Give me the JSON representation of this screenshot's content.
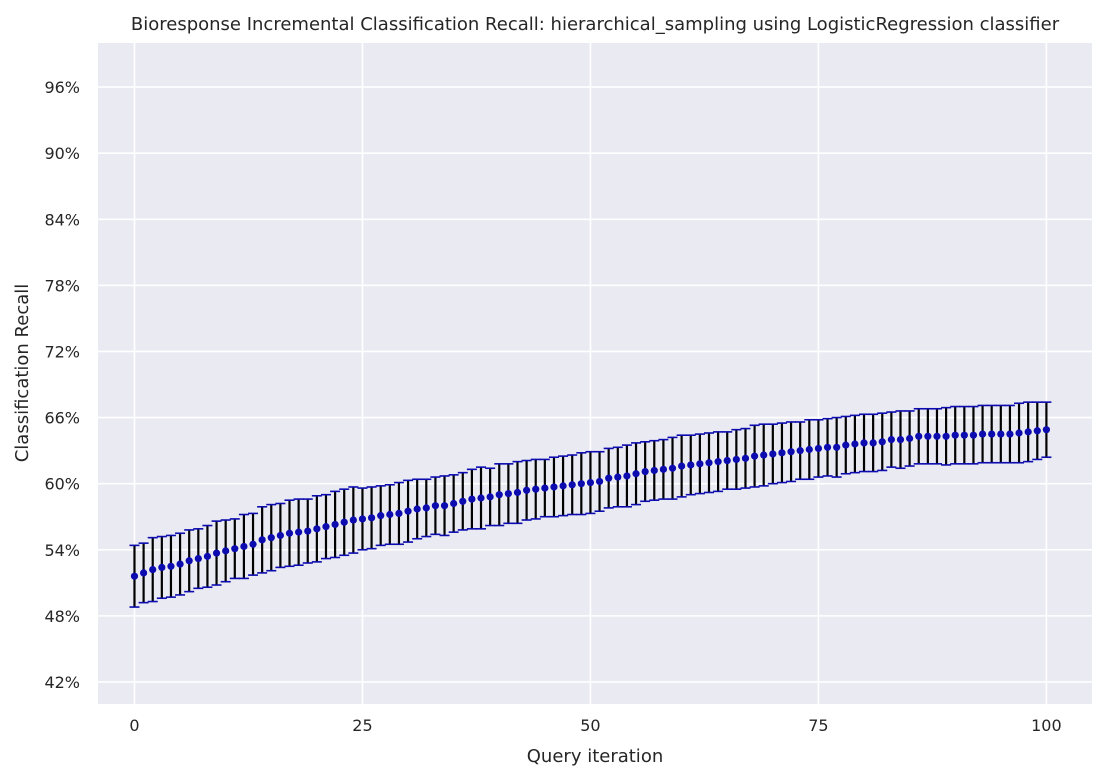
{
  "chart_data": {
    "type": "errorbar",
    "title": "Bioresponse Incremental Classification Recall: hierarchical_sampling using LogisticRegression classifier",
    "xlabel": "Query iteration",
    "ylabel": "Classification Recall",
    "xlim": [
      -4,
      105
    ],
    "ylim": [
      0.4,
      1.0
    ],
    "xticks": [
      0,
      25,
      50,
      75,
      100
    ],
    "xtick_labels": [
      "0",
      "25",
      "50",
      "75",
      "100"
    ],
    "yticks": [
      0.42,
      0.48,
      0.54,
      0.6,
      0.66,
      0.72,
      0.78,
      0.84,
      0.9,
      0.96
    ],
    "ytick_labels": [
      "42%",
      "48%",
      "54%",
      "60%",
      "66%",
      "72%",
      "78%",
      "84%",
      "90%",
      "96%"
    ],
    "grid": true,
    "colors": {
      "background": "#eaeaf2",
      "grid": "#ffffff",
      "marker": "#0b0bb0",
      "errorbar": "#000000",
      "cap": "#0b0bb0"
    },
    "series": [
      {
        "x": [
          0,
          1,
          2,
          3,
          4,
          5,
          6,
          7,
          8,
          9,
          10,
          11,
          12,
          13,
          14,
          15,
          16,
          17,
          18,
          19,
          20,
          21,
          22,
          23,
          24,
          25,
          26,
          27,
          28,
          29,
          30,
          31,
          32,
          33,
          34,
          35,
          36,
          37,
          38,
          39,
          40,
          41,
          42,
          43,
          44,
          45,
          46,
          47,
          48,
          49,
          50,
          51,
          52,
          53,
          54,
          55,
          56,
          57,
          58,
          59,
          60,
          61,
          62,
          63,
          64,
          65,
          66,
          67,
          68,
          69,
          70,
          71,
          72,
          73,
          74,
          75,
          76,
          77,
          78,
          79,
          80,
          81,
          82,
          83,
          84,
          85,
          86,
          87,
          88,
          89,
          90,
          91,
          92,
          93,
          94,
          95,
          96,
          97,
          98,
          99,
          100
        ],
        "y": [
          0.516,
          0.519,
          0.522,
          0.524,
          0.525,
          0.527,
          0.53,
          0.532,
          0.534,
          0.537,
          0.539,
          0.541,
          0.543,
          0.545,
          0.549,
          0.551,
          0.553,
          0.555,
          0.556,
          0.557,
          0.559,
          0.561,
          0.563,
          0.565,
          0.567,
          0.568,
          0.569,
          0.571,
          0.572,
          0.573,
          0.575,
          0.577,
          0.578,
          0.58,
          0.58,
          0.582,
          0.584,
          0.586,
          0.587,
          0.588,
          0.59,
          0.591,
          0.592,
          0.594,
          0.595,
          0.596,
          0.597,
          0.598,
          0.599,
          0.6,
          0.601,
          0.602,
          0.605,
          0.606,
          0.607,
          0.609,
          0.611,
          0.612,
          0.613,
          0.614,
          0.616,
          0.617,
          0.618,
          0.619,
          0.62,
          0.621,
          0.622,
          0.623,
          0.625,
          0.626,
          0.627,
          0.628,
          0.629,
          0.63,
          0.631,
          0.632,
          0.633,
          0.633,
          0.635,
          0.636,
          0.637,
          0.637,
          0.638,
          0.64,
          0.64,
          0.641,
          0.643,
          0.643,
          0.643,
          0.643,
          0.644,
          0.644,
          0.644,
          0.645,
          0.645,
          0.645,
          0.645,
          0.646,
          0.647,
          0.648,
          0.649
        ],
        "yerr": [
          0.028,
          0.027,
          0.029,
          0.028,
          0.028,
          0.028,
          0.028,
          0.027,
          0.028,
          0.029,
          0.028,
          0.027,
          0.029,
          0.028,
          0.03,
          0.03,
          0.029,
          0.03,
          0.03,
          0.029,
          0.03,
          0.029,
          0.03,
          0.03,
          0.03,
          0.028,
          0.028,
          0.027,
          0.027,
          0.028,
          0.028,
          0.027,
          0.026,
          0.026,
          0.027,
          0.026,
          0.026,
          0.027,
          0.028,
          0.026,
          0.028,
          0.027,
          0.028,
          0.027,
          0.027,
          0.026,
          0.027,
          0.027,
          0.027,
          0.028,
          0.028,
          0.027,
          0.027,
          0.027,
          0.028,
          0.028,
          0.027,
          0.027,
          0.027,
          0.028,
          0.028,
          0.027,
          0.027,
          0.027,
          0.027,
          0.026,
          0.027,
          0.027,
          0.028,
          0.028,
          0.027,
          0.027,
          0.027,
          0.026,
          0.027,
          0.026,
          0.026,
          0.027,
          0.026,
          0.026,
          0.026,
          0.026,
          0.026,
          0.025,
          0.026,
          0.025,
          0.025,
          0.025,
          0.025,
          0.026,
          0.026,
          0.026,
          0.026,
          0.026,
          0.026,
          0.026,
          0.026,
          0.027,
          0.027,
          0.026,
          0.025
        ]
      }
    ]
  }
}
